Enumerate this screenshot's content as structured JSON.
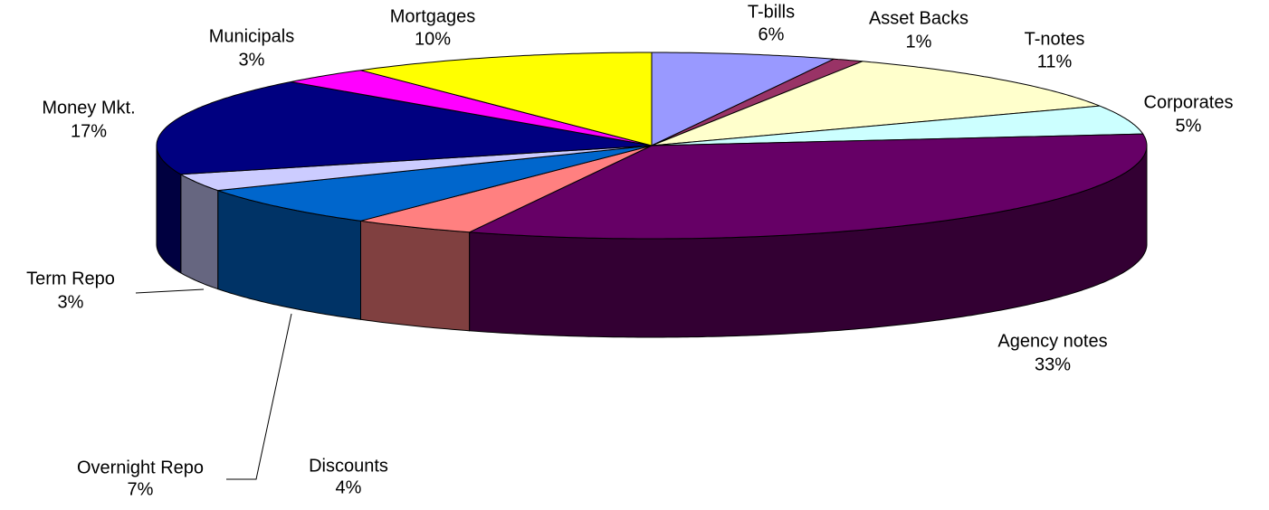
{
  "chart_data": {
    "type": "pie",
    "categories": [
      "T-bills",
      "Asset Backs",
      "T-notes",
      "Corporates",
      "Agency notes",
      "Discounts",
      "Overnight Repo",
      "Term Repo",
      "Money Mkt.",
      "Municipals",
      "Mortgages"
    ],
    "values": [
      6,
      1,
      11,
      5,
      33,
      4,
      7,
      3,
      17,
      3,
      10
    ],
    "value_labels": [
      "6%",
      "1%",
      "11%",
      "5%",
      "33%",
      "4%",
      "7%",
      "3%",
      "17%",
      "3%",
      "10%"
    ],
    "colors": [
      "#9999FF",
      "#993366",
      "#FFFFCC",
      "#CCFFFF",
      "#660066",
      "#FF8080",
      "#0066CC",
      "#CCCCFF",
      "#000080",
      "#FF00FF",
      "#FFFF00"
    ]
  }
}
